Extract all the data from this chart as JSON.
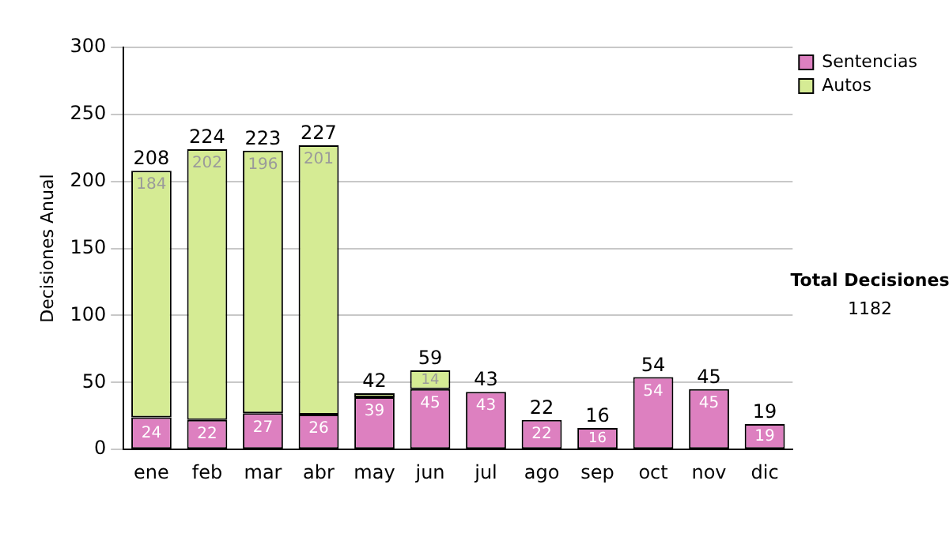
{
  "chart_data": {
    "type": "bar",
    "stacked": true,
    "ylabel": "Decisiones Anual",
    "categories": [
      "ene",
      "feb",
      "mar",
      "abr",
      "may",
      "jun",
      "jul",
      "ago",
      "sep",
      "oct",
      "nov",
      "dic"
    ],
    "series": [
      {
        "name": "Sentencias",
        "color": "#dd80c0",
        "values": [
          24,
          22,
          27,
          26,
          39,
          45,
          43,
          22,
          16,
          54,
          45,
          19
        ],
        "value_labels": [
          "24",
          "22",
          "27",
          "26",
          "39",
          "45",
          "43",
          "22",
          "16",
          "54",
          "45",
          "19"
        ]
      },
      {
        "name": "Autos",
        "color": "#d5eb94",
        "values": [
          184,
          202,
          196,
          201,
          3,
          14,
          0,
          0,
          0,
          0,
          0,
          0
        ],
        "value_labels": [
          "184",
          "202",
          "196",
          "201",
          null,
          "14",
          null,
          null,
          null,
          null,
          null,
          null
        ]
      }
    ],
    "totals": [
      "208",
      "224",
      "223",
      "227",
      "42",
      "59",
      "43",
      "22",
      "16",
      "54",
      "45",
      "19"
    ],
    "ylim": [
      0,
      300
    ],
    "yticks": [
      0,
      50,
      100,
      150,
      200,
      250,
      300
    ],
    "grid": "y",
    "legend": "right",
    "annotations": [
      "Total Decisiones",
      "1182"
    ]
  }
}
